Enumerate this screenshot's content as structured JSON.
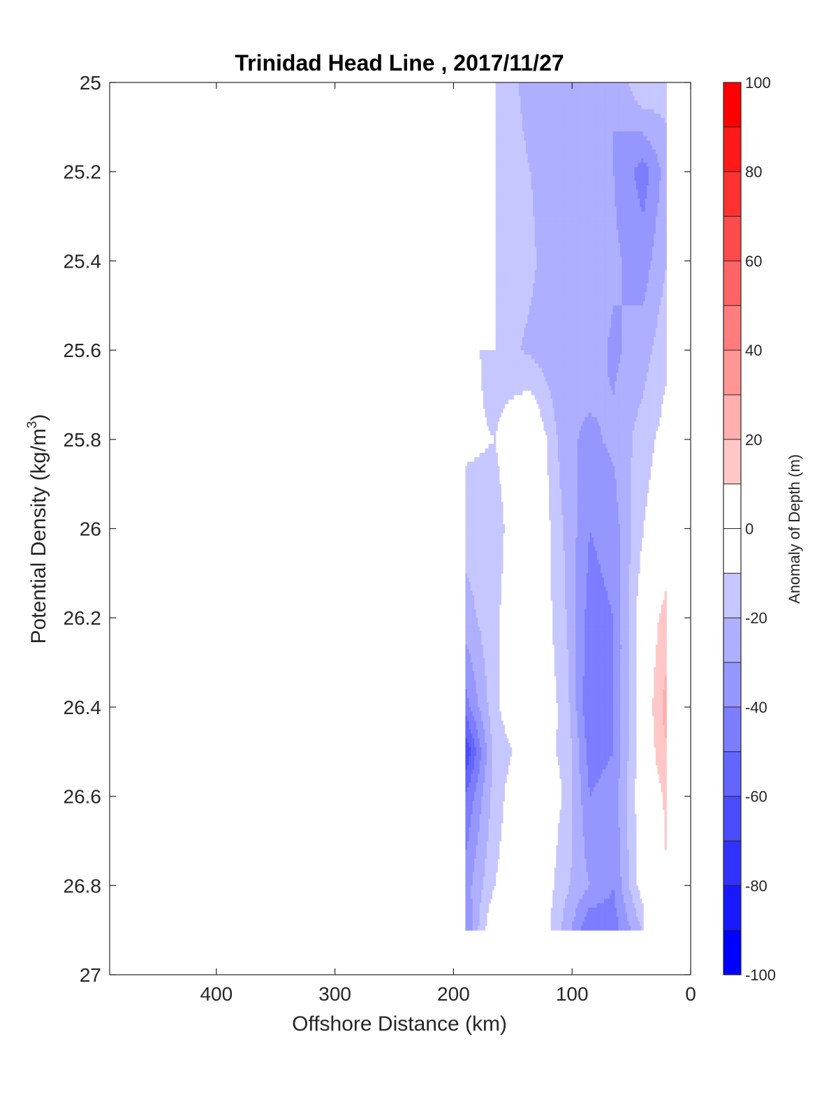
{
  "chart_data": {
    "type": "heatmap",
    "title": "Trinidad Head Line , 2017/11/27",
    "xlabel": "Offshore Distance (km)",
    "ylabel": "Potential Density (kg/m",
    "ylabel_sup": "3",
    "ylabel_close": ")",
    "colorbar_label": "Anomaly of Depth (m)",
    "xlim": [
      490,
      0
    ],
    "ylim": [
      25,
      27
    ],
    "x_reversed": true,
    "y_reversed": true,
    "x_ticks": [
      400,
      300,
      200,
      100,
      0
    ],
    "x_tick_labels": [
      "400",
      "300",
      "200",
      "100",
      "0"
    ],
    "y_ticks": [
      25,
      25.2,
      25.4,
      25.6,
      25.8,
      26,
      26.2,
      26.4,
      26.6,
      26.8,
      27
    ],
    "y_tick_labels": [
      "25",
      "25.2",
      "25.4",
      "25.6",
      "25.8",
      "26",
      "26.2",
      "26.4",
      "26.6",
      "26.8",
      "27"
    ],
    "colorbar_ticks": [
      100,
      80,
      60,
      40,
      20,
      0,
      -20,
      -40,
      -60,
      -80,
      -100
    ],
    "colorbar_tick_labels": [
      "100",
      "80",
      "60",
      "40",
      "20",
      "0",
      "-20",
      "-40",
      "-60",
      "-80",
      "-100"
    ],
    "colorbar_range": [
      -100,
      100
    ],
    "colorbar_step": 10,
    "grid": false,
    "colors": {
      "neg_max": "#0000ff",
      "zero": "#ffffff",
      "pos_max": "#ff0000",
      "contour": "#000000"
    },
    "contour_level": 0,
    "stations_x": [
      190,
      165,
      135,
      105,
      85,
      65,
      40,
      20
    ],
    "density_levels": [
      25.0,
      25.2,
      25.4,
      25.6,
      25.8,
      26.0,
      26.2,
      26.4,
      26.5,
      26.6,
      26.8,
      26.9
    ],
    "anomaly": [
      [
        null,
        -10,
        -25,
        -25,
        -20,
        -30,
        -10,
        -15
      ],
      [
        null,
        -12,
        -20,
        -30,
        -20,
        -30,
        -45,
        -25
      ],
      [
        null,
        -12,
        -18,
        -30,
        -22,
        -28,
        -35,
        -20
      ],
      [
        -5,
        -15,
        -22,
        -30,
        -25,
        -32,
        -25,
        -12
      ],
      [
        -8,
        -10,
        5,
        -28,
        -32,
        -28,
        -15,
        -5
      ],
      [
        -15,
        -15,
        5,
        -22,
        -40,
        -35,
        -10,
        0
      ],
      [
        -25,
        -12,
        5,
        -20,
        -45,
        -40,
        0,
        15
      ],
      [
        -45,
        -12,
        5,
        -15,
        -50,
        -40,
        0,
        25
      ],
      [
        -70,
        -15,
        -5,
        -12,
        -45,
        -40,
        0,
        20
      ],
      [
        -50,
        -15,
        5,
        -12,
        -40,
        -35,
        0,
        12
      ],
      [
        -35,
        -10,
        5,
        -18,
        -30,
        -40,
        -2,
        10
      ],
      [
        -40,
        5,
        8,
        -25,
        -50,
        -45,
        -20,
        null
      ]
    ]
  }
}
